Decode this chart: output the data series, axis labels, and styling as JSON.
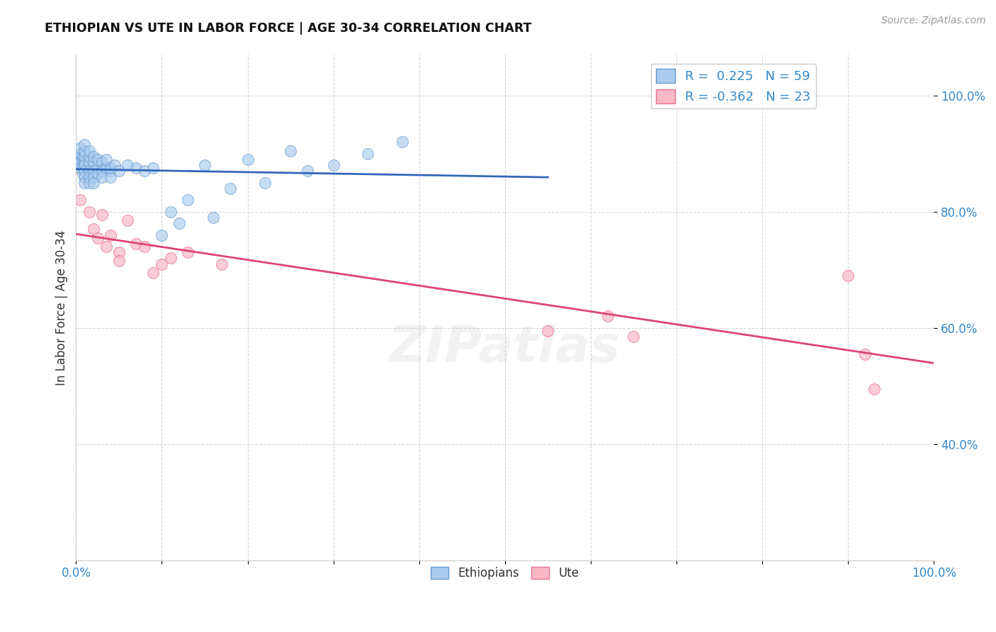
{
  "title": "ETHIOPIAN VS UTE IN LABOR FORCE | AGE 30-34 CORRELATION CHART",
  "source_text": "Source: ZipAtlas.com",
  "ylabel": "In Labor Force | Age 30-34",
  "xlim": [
    0.0,
    1.0
  ],
  "ylim": [
    0.2,
    1.07
  ],
  "y_tick_labels": [
    "40.0%",
    "60.0%",
    "80.0%",
    "100.0%"
  ],
  "y_tick_positions": [
    0.4,
    0.6,
    0.8,
    1.0
  ],
  "legend_r_ethiopians": "0.225",
  "legend_n_ethiopians": "59",
  "legend_r_ute": "-0.362",
  "legend_n_ute": "23",
  "blue_scatter_color": "#aaccee",
  "blue_edge_color": "#6699cc",
  "pink_scatter_color": "#f9b8c8",
  "pink_edge_color": "#e87090",
  "blue_line_color": "#3366bb",
  "pink_line_color": "#dd4477",
  "title_color": "#111111",
  "axis_label_color": "#333333",
  "tick_color": "#3388cc",
  "grid_color": "#bbbbbb",
  "background_color": "#ffffff",
  "ethiopian_x": [
    0.005,
    0.005,
    0.005,
    0.005,
    0.005,
    0.008,
    0.008,
    0.008,
    0.008,
    0.01,
    0.01,
    0.01,
    0.01,
    0.01,
    0.01,
    0.01,
    0.01,
    0.015,
    0.015,
    0.015,
    0.015,
    0.015,
    0.015,
    0.02,
    0.02,
    0.02,
    0.02,
    0.02,
    0.025,
    0.025,
    0.025,
    0.03,
    0.03,
    0.03,
    0.035,
    0.035,
    0.04,
    0.04,
    0.04,
    0.045,
    0.05,
    0.06,
    0.07,
    0.08,
    0.09,
    0.1,
    0.11,
    0.12,
    0.13,
    0.15,
    0.16,
    0.18,
    0.2,
    0.22,
    0.25,
    0.27,
    0.3,
    0.34,
    0.38
  ],
  "ethiopian_y": [
    0.895,
    0.885,
    0.875,
    0.9,
    0.91,
    0.885,
    0.895,
    0.875,
    0.865,
    0.885,
    0.895,
    0.905,
    0.915,
    0.88,
    0.87,
    0.86,
    0.85,
    0.885,
    0.895,
    0.905,
    0.87,
    0.86,
    0.85,
    0.885,
    0.895,
    0.87,
    0.86,
    0.85,
    0.875,
    0.89,
    0.865,
    0.885,
    0.87,
    0.86,
    0.875,
    0.89,
    0.87,
    0.86,
    0.875,
    0.88,
    0.87,
    0.88,
    0.875,
    0.87,
    0.875,
    0.76,
    0.8,
    0.78,
    0.82,
    0.88,
    0.79,
    0.84,
    0.89,
    0.85,
    0.905,
    0.87,
    0.88,
    0.9,
    0.92
  ],
  "ute_x": [
    0.005,
    0.015,
    0.02,
    0.025,
    0.03,
    0.035,
    0.04,
    0.05,
    0.05,
    0.06,
    0.07,
    0.08,
    0.09,
    0.1,
    0.11,
    0.13,
    0.17,
    0.55,
    0.62,
    0.65,
    0.9,
    0.92,
    0.93
  ],
  "ute_y": [
    0.82,
    0.8,
    0.77,
    0.755,
    0.795,
    0.74,
    0.76,
    0.73,
    0.715,
    0.785,
    0.745,
    0.74,
    0.695,
    0.71,
    0.72,
    0.73,
    0.71,
    0.595,
    0.62,
    0.585,
    0.69,
    0.555,
    0.495
  ]
}
